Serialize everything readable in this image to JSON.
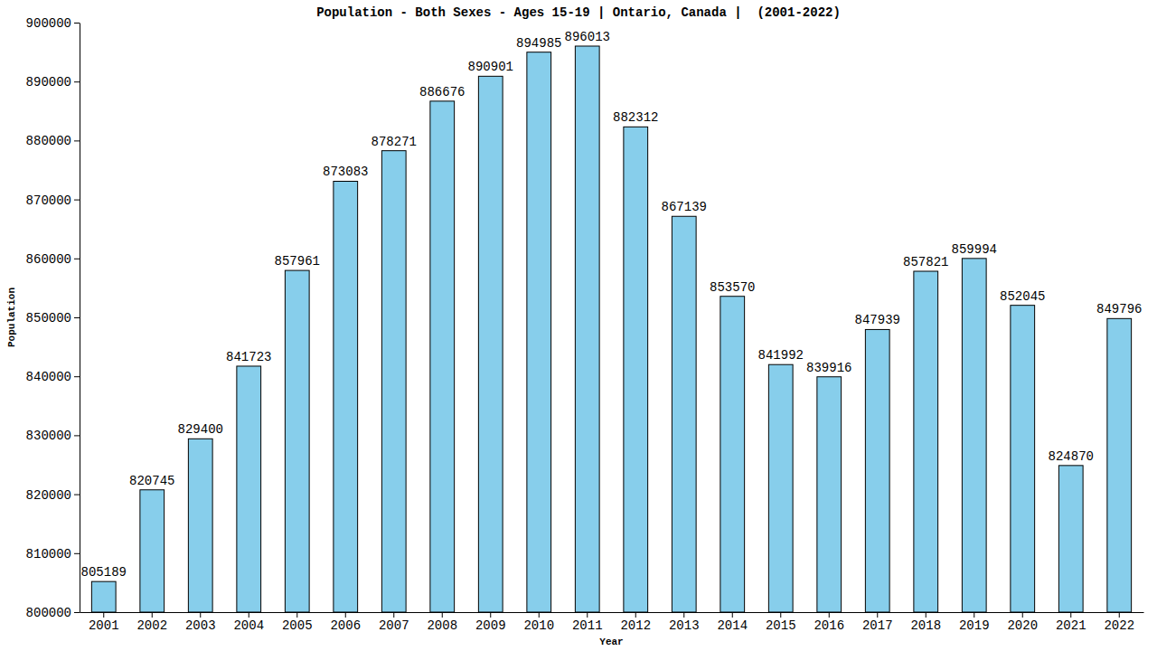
{
  "chart_data": {
    "type": "bar",
    "title": "Population - Both Sexes - Ages 15-19 | Ontario, Canada |  (2001-2022)",
    "x_label": "Year",
    "y_label": "Population",
    "categories": [
      "2001",
      "2002",
      "2003",
      "2004",
      "2005",
      "2006",
      "2007",
      "2008",
      "2009",
      "2010",
      "2011",
      "2012",
      "2013",
      "2014",
      "2015",
      "2016",
      "2017",
      "2018",
      "2019",
      "2020",
      "2021",
      "2022"
    ],
    "values": [
      805189,
      820745,
      829400,
      841723,
      857961,
      873083,
      878271,
      886676,
      890901,
      894985,
      896013,
      882312,
      867139,
      853570,
      841992,
      839916,
      847939,
      857821,
      859994,
      852045,
      824870,
      849796
    ],
    "color": "#87ceeb",
    "ylim": [
      800000,
      900000
    ],
    "yticks": [
      800000,
      810000,
      820000,
      830000,
      840000,
      850000,
      860000,
      870000,
      880000,
      890000,
      900000
    ],
    "grid": false,
    "data_labels": true
  }
}
